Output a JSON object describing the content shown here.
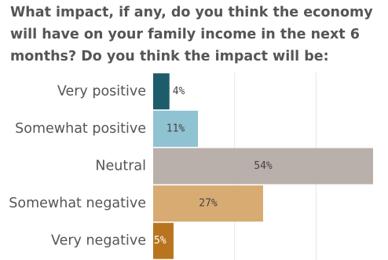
{
  "chart_data": {
    "type": "bar",
    "orientation": "horizontal",
    "title": "What impact, if any, do you think the economy will have on your family income in the next 6 months? Do you think the impact will be:",
    "categories": [
      "Very positive",
      "Somewhat positive",
      "Neutral",
      "Somewhat negative",
      "Very negative"
    ],
    "values": [
      4,
      11,
      54,
      27,
      5
    ],
    "data_labels": [
      "4%",
      "11%",
      "54%",
      "27%",
      "5%"
    ],
    "colors": [
      "#1d5c6a",
      "#8fc3d1",
      "#b9b0ab",
      "#d8ab72",
      "#b8741e"
    ],
    "xlim": [
      0,
      54
    ],
    "grid": true,
    "xlabel": "",
    "ylabel": ""
  }
}
